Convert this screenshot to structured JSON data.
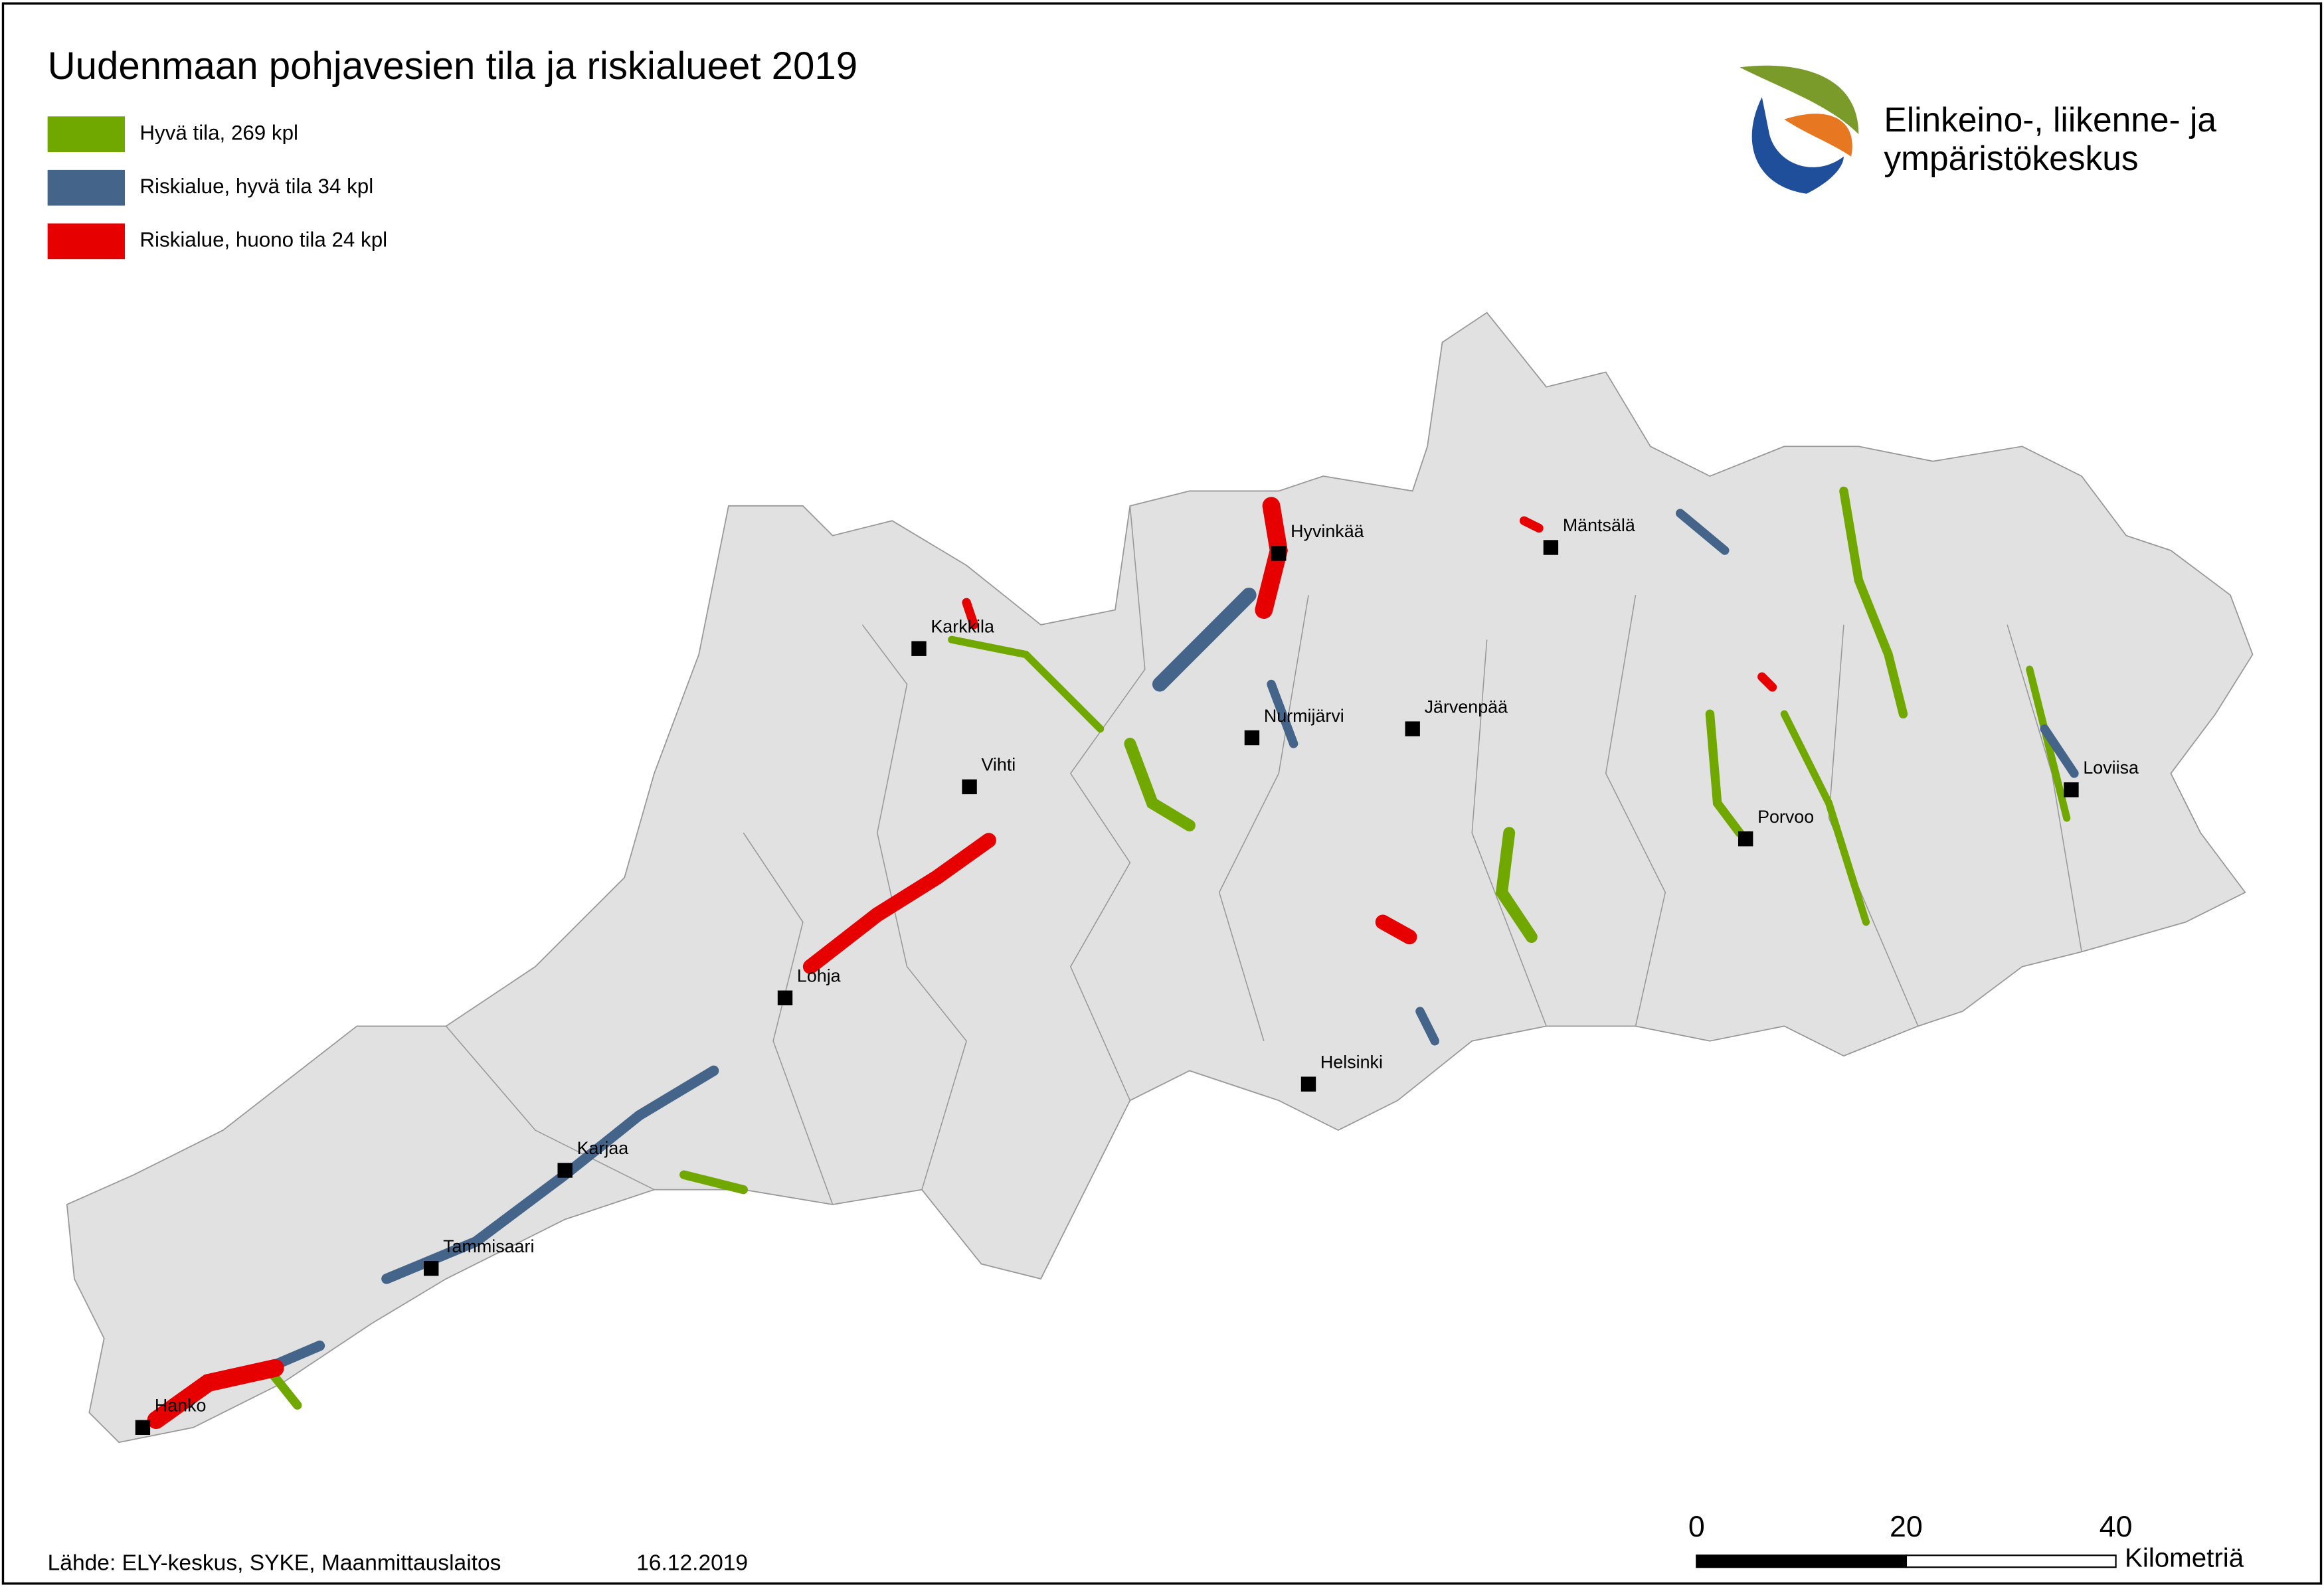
{
  "title": "Uudenmaan pohjavesien tila ja riskialueet 2019",
  "legend": [
    {
      "name": "Hyvä tila, 269 kpl",
      "color": "#70a800"
    },
    {
      "name": "Riskialue, hyvä tila 34 kpl",
      "color": "#446589"
    },
    {
      "name": "Riskialue, huono tila 24 kpl",
      "color": "#e60000"
    }
  ],
  "logo": {
    "lines": [
      "Elinkeino-, liikenne- ja",
      "ympäristökeskus"
    ]
  },
  "cities": [
    "Hyvinkää",
    "Mäntsälä",
    "Karkkila",
    "Nurmijärvi",
    "Järvenpää",
    "Vihti",
    "Loviisa",
    "Porvoo",
    "Lohja",
    "Helsinki",
    "Karjaa",
    "Tammisaari",
    "Hanko"
  ],
  "scale": {
    "ticks": [
      0,
      20,
      40
    ],
    "unit": "Kilometriä"
  },
  "source": "Lähde: ELY-keskus, SYKE, Maanmittauslaitos",
  "date": "16.12.2019"
}
